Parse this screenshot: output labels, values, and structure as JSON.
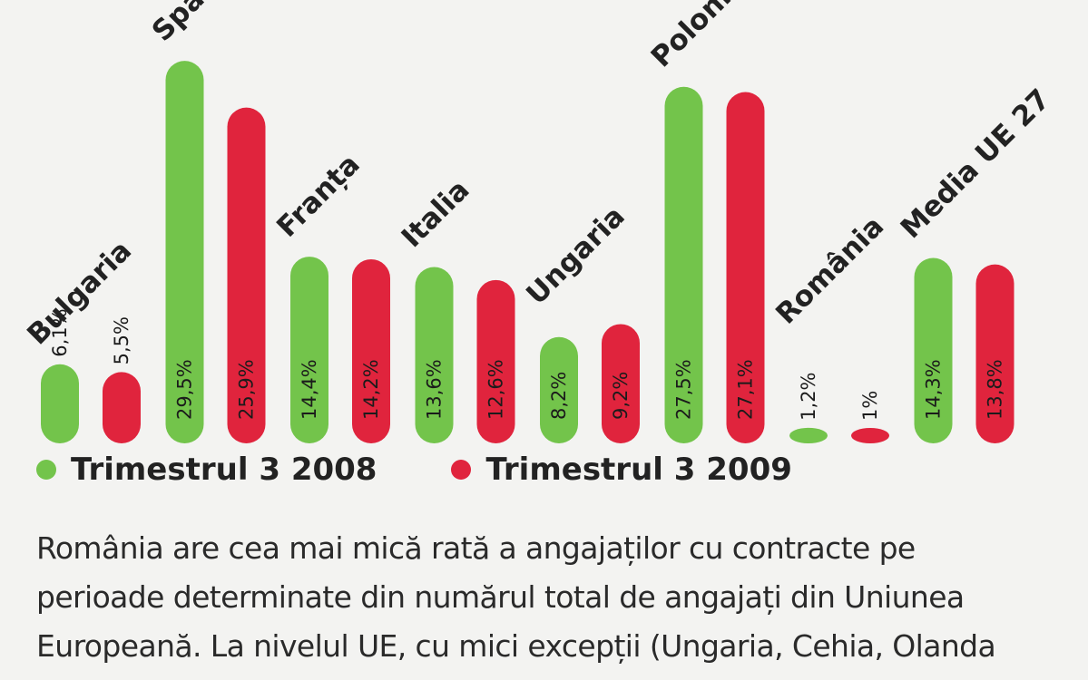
{
  "chart_data": {
    "type": "bar",
    "categories": [
      "Bulgaria",
      "Spania",
      "Franța",
      "Italia",
      "Ungaria",
      "Polonia",
      "România",
      "Media UE 27"
    ],
    "series": [
      {
        "name": "Trimestrul 3 2008",
        "values": [
          6.1,
          29.5,
          14.4,
          13.6,
          8.2,
          27.5,
          1.2,
          14.3
        ],
        "labels": [
          "6,1%",
          "29,5%",
          "14,4%",
          "13,6%",
          "8,2%",
          "27,5%",
          "1,2%",
          "14,3%"
        ],
        "color": "#73c44b"
      },
      {
        "name": "Trimestrul 3 2009",
        "values": [
          5.5,
          25.9,
          14.2,
          12.6,
          9.2,
          27.1,
          1.0,
          13.8
        ],
        "labels": [
          "5,5%",
          "25,9%",
          "14,2%",
          "12,6%",
          "9,2%",
          "27,1%",
          "1%",
          "13,8%"
        ],
        "color": "#e0243d"
      }
    ],
    "legend_position": "bottom-left",
    "grid": false
  },
  "legend": [
    {
      "label": "Trimestrul 3 2008",
      "color": "#73c44b"
    },
    {
      "label": "Trimestrul 3 2009",
      "color": "#e0243d"
    }
  ],
  "caption": {
    "lines": [
      "România are cea mai mică rată a angajaților cu contracte pe",
      "perioade determinate din numărul total de angajați din Uniunea",
      "Europeană. La nivelul UE, cu mici excepții (Ungaria, Cehia, Olanda"
    ]
  }
}
